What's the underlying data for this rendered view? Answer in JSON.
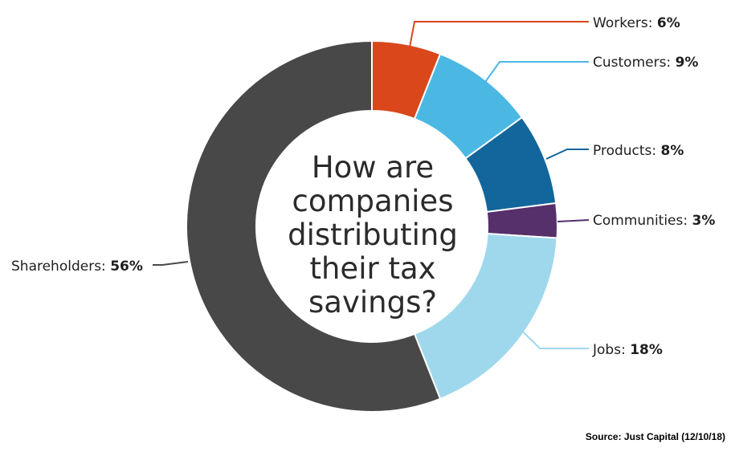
{
  "chart_data": {
    "type": "pie",
    "style": "donut",
    "center_title_lines": [
      "How are",
      "companies",
      "distributing",
      "their tax",
      "savings?"
    ],
    "slices": [
      {
        "label": "Workers:",
        "value_label": "6%",
        "value": 6,
        "color": "#d9471b"
      },
      {
        "label": "Customers:",
        "value_label": "9%",
        "value": 9,
        "color": "#4bb8e4"
      },
      {
        "label": "Products:",
        "value_label": "8%",
        "value": 8,
        "color": "#12669b"
      },
      {
        "label": "Communities:",
        "value_label": "3%",
        "value": 3,
        "color": "#55306b"
      },
      {
        "label": "Jobs:",
        "value_label": "18%",
        "value": 18,
        "color": "#9fd8ec"
      },
      {
        "label": "Shareholders:",
        "value_label": "56%",
        "value": 56,
        "color": "#484848"
      }
    ],
    "source": "Source: Just Capital (12/10/18)"
  }
}
